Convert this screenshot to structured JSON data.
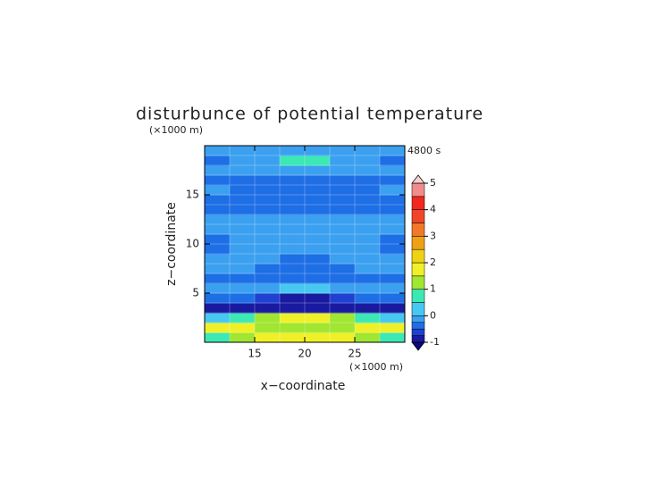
{
  "chart_data": {
    "type": "contour",
    "title": "disturbunce of potential temperature",
    "y_unit_label": "(×1000 m)",
    "x_unit_label": "(×1000 m)",
    "xlabel": "x−coordinate",
    "ylabel": "z−coordinate",
    "time_label": "4800 s",
    "xlim": [
      10,
      30
    ],
    "ylim": [
      0,
      20
    ],
    "xticks": [
      15,
      20,
      25
    ],
    "yticks": [
      5,
      10,
      15
    ],
    "grid": true,
    "x": [
      10,
      12.5,
      15,
      17.5,
      20,
      22.5,
      25,
      27.5,
      30
    ],
    "z": [
      0,
      1,
      2,
      3,
      4,
      5,
      6,
      7,
      8,
      9,
      10,
      11,
      12,
      13,
      14,
      15,
      16,
      17,
      18,
      19,
      20
    ],
    "values": [
      [
        0.8,
        1.2,
        1.5,
        1.6,
        1.6,
        1.5,
        1.2,
        0.8
      ],
      [
        1.6,
        1.8,
        1.4,
        1.0,
        1.0,
        1.4,
        1.8,
        1.6
      ],
      [
        0.3,
        0.6,
        1.2,
        1.8,
        1.8,
        1.2,
        0.6,
        0.3
      ],
      [
        -0.9,
        -0.8,
        -0.8,
        -0.9,
        -0.9,
        -0.8,
        -0.8,
        -0.9
      ],
      [
        -0.3,
        -0.4,
        -0.6,
        -0.8,
        -0.8,
        -0.6,
        -0.4,
        -0.3
      ],
      [
        -0.1,
        -0.2,
        -0.1,
        0.2,
        0.2,
        -0.1,
        -0.2,
        -0.1
      ],
      [
        -0.3,
        -0.35,
        -0.3,
        -0.3,
        -0.3,
        -0.3,
        -0.35,
        -0.3
      ],
      [
        -0.2,
        -0.2,
        -0.35,
        -0.4,
        -0.4,
        -0.35,
        -0.2,
        -0.2
      ],
      [
        -0.1,
        -0.1,
        -0.2,
        -0.3,
        -0.3,
        -0.2,
        -0.1,
        -0.1
      ],
      [
        -0.3,
        -0.1,
        -0.1,
        -0.1,
        -0.1,
        -0.1,
        -0.1,
        -0.3
      ],
      [
        -0.3,
        -0.1,
        -0.1,
        -0.1,
        -0.1,
        -0.1,
        -0.1,
        -0.3
      ],
      [
        -0.2,
        -0.1,
        -0.1,
        -0.1,
        -0.1,
        -0.1,
        -0.1,
        -0.2
      ],
      [
        -0.1,
        -0.2,
        -0.2,
        -0.2,
        -0.2,
        -0.2,
        -0.2,
        -0.1
      ],
      [
        -0.3,
        -0.3,
        -0.3,
        -0.3,
        -0.3,
        -0.3,
        -0.3,
        -0.3
      ],
      [
        -0.3,
        -0.35,
        -0.4,
        -0.4,
        -0.4,
        -0.4,
        -0.35,
        -0.3
      ],
      [
        -0.2,
        -0.3,
        -0.4,
        -0.4,
        -0.4,
        -0.4,
        -0.3,
        -0.2
      ],
      [
        -0.3,
        -0.3,
        -0.3,
        -0.3,
        -0.3,
        -0.3,
        -0.3,
        -0.3
      ],
      [
        -0.1,
        -0.2,
        -0.1,
        -0.1,
        -0.1,
        -0.1,
        -0.2,
        -0.1
      ],
      [
        -0.3,
        -0.1,
        -0.1,
        0.6,
        0.6,
        -0.1,
        -0.1,
        -0.3
      ],
      [
        -0.2,
        -0.1,
        -0.1,
        -0.1,
        -0.1,
        -0.1,
        -0.1,
        -0.2
      ]
    ],
    "colorbar": {
      "levels": [
        -1,
        -0.75,
        -0.5,
        -0.25,
        0,
        0.5,
        1,
        1.5,
        2,
        2.5,
        3,
        3.5,
        4,
        4.5,
        5
      ],
      "colors": [
        "#1a1aa0",
        "#2040d0",
        "#1e6ee6",
        "#3ca0f0",
        "#46c8f0",
        "#3ce8b4",
        "#a0e632",
        "#f0f028",
        "#f0d214",
        "#f0a014",
        "#f07828",
        "#f04628",
        "#f0281e",
        "#f08c8c"
      ],
      "under_color": "#0a0a78",
      "over_color": "#f8d0d0",
      "ticks": [
        -1,
        0,
        1,
        2,
        3,
        4,
        5
      ]
    }
  }
}
